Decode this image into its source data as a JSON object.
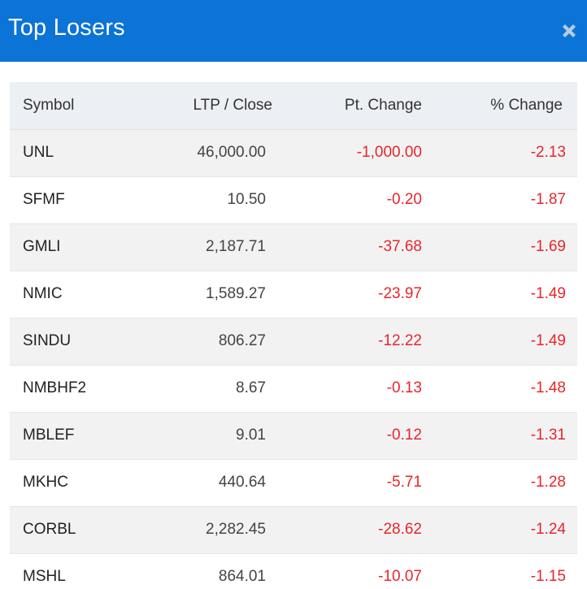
{
  "header": {
    "title": "Top Losers",
    "close_icon": "close-icon"
  },
  "colors": {
    "header_bg": "#0b74d6",
    "negative": "#e8262a"
  },
  "table": {
    "columns": [
      "Symbol",
      "LTP / Close",
      "Pt. Change",
      "% Change"
    ],
    "rows": [
      {
        "symbol": "UNL",
        "ltp": "46,000.00",
        "pt_change": "-1,000.00",
        "pct_change": "-2.13"
      },
      {
        "symbol": "SFMF",
        "ltp": "10.50",
        "pt_change": "-0.20",
        "pct_change": "-1.87"
      },
      {
        "symbol": "GMLI",
        "ltp": "2,187.71",
        "pt_change": "-37.68",
        "pct_change": "-1.69"
      },
      {
        "symbol": "NMIC",
        "ltp": "1,589.27",
        "pt_change": "-23.97",
        "pct_change": "-1.49"
      },
      {
        "symbol": "SINDU",
        "ltp": "806.27",
        "pt_change": "-12.22",
        "pct_change": "-1.49"
      },
      {
        "symbol": "NMBHF2",
        "ltp": "8.67",
        "pt_change": "-0.13",
        "pct_change": "-1.48"
      },
      {
        "symbol": "MBLEF",
        "ltp": "9.01",
        "pt_change": "-0.12",
        "pct_change": "-1.31"
      },
      {
        "symbol": "MKHC",
        "ltp": "440.64",
        "pt_change": "-5.71",
        "pct_change": "-1.28"
      },
      {
        "symbol": "CORBL",
        "ltp": "2,282.45",
        "pt_change": "-28.62",
        "pct_change": "-1.24"
      },
      {
        "symbol": "MSHL",
        "ltp": "864.01",
        "pt_change": "-10.07",
        "pct_change": "-1.15"
      }
    ]
  }
}
